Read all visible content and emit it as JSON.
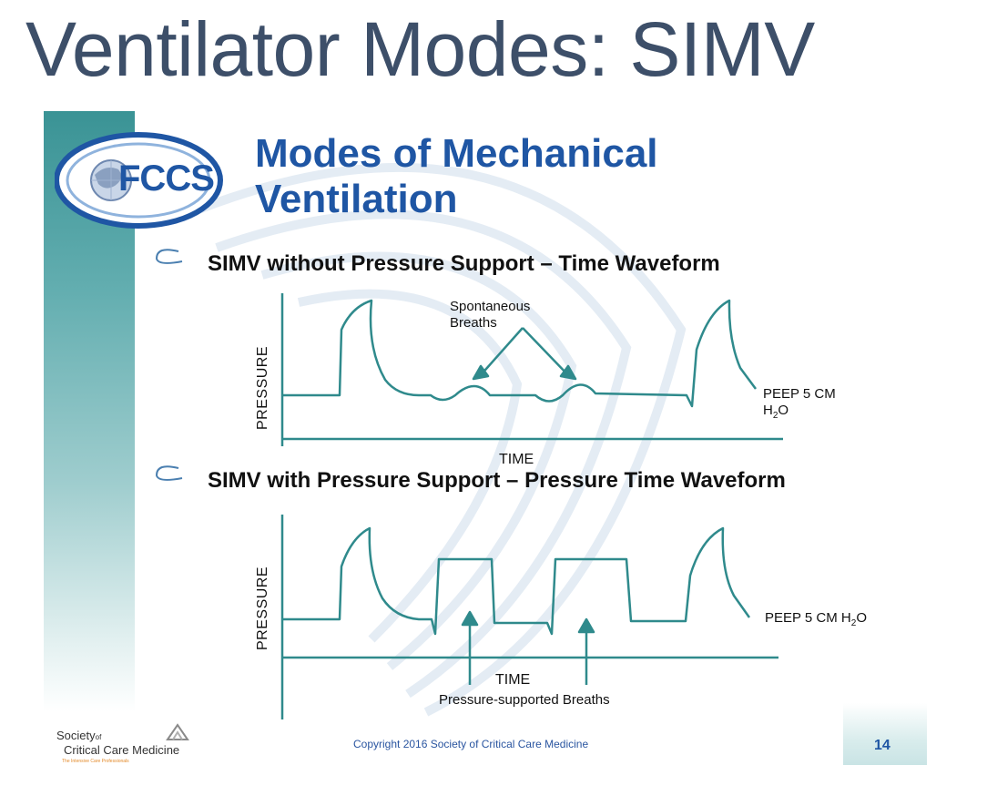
{
  "title": "Ventilator Modes: SIMV",
  "logo": {
    "text": "FCCS",
    "icon": "globe-icon"
  },
  "heading": {
    "line1": "Modes of Mechanical",
    "line2": "Ventilation"
  },
  "panel1": {
    "subheading": "SIMV without Pressure Support – Time Waveform",
    "ylabel": "PRESSURE",
    "xlabel": "TIME",
    "annotation_line1": "Spontaneous",
    "annotation_line2": "Breaths",
    "peep_line1": "PEEP 5 CM",
    "peep_line2": "H",
    "peep_sub": "2",
    "peep_line2_end": "O"
  },
  "panel2": {
    "subheading": "SIMV with Pressure Support – Pressure Time Waveform",
    "ylabel": "PRESSURE",
    "xlabel": "TIME",
    "annotation": "Pressure-supported Breaths",
    "peep_main": "PEEP 5 CM H",
    "peep_sub": "2",
    "peep_end": "O"
  },
  "footer": {
    "org_line1": "Society",
    "org_of": "of",
    "org_line2": "Critical Care Medicine",
    "tagline": "The Intensive Care Professionals",
    "copyright": "Copyright 2016 Society of Critical Care Medicine",
    "page": "14"
  },
  "colors": {
    "title": "#3d4f69",
    "heading": "#1f56a4",
    "waveform": "#2f8a8c",
    "sidebar": "#3a9395"
  }
}
